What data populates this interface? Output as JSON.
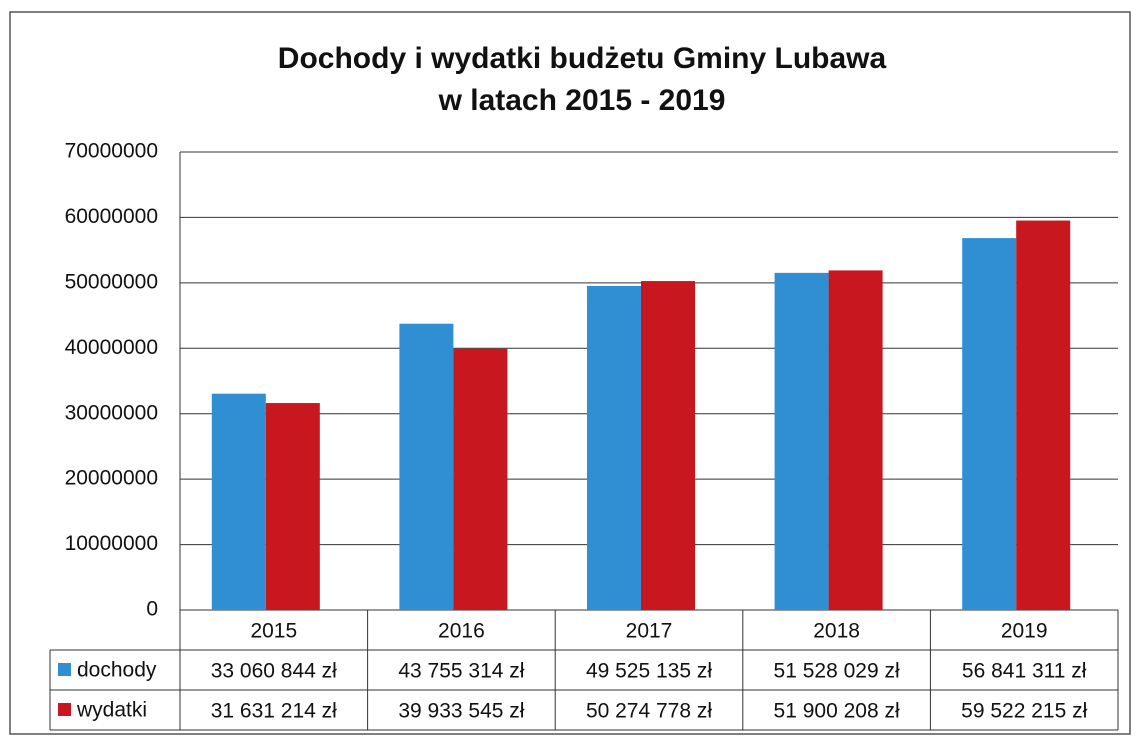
{
  "chart_data": {
    "type": "bar",
    "title": "Dochody i wydatki budżetu Gminy Lubawa",
    "subtitle": "w latach 2015 - 2019",
    "categories": [
      "2015",
      "2016",
      "2017",
      "2018",
      "2019"
    ],
    "series": [
      {
        "name": "dochody",
        "color": "#2f8fd2",
        "values": [
          33060844,
          43755314,
          49525135,
          51528029,
          56841311
        ],
        "value_labels": [
          "33 060 844 zł",
          "43 755 314 zł",
          "49 525 135 zł",
          "51 528 029 zł",
          "56 841 311 zł"
        ]
      },
      {
        "name": "wydatki",
        "color": "#c8171e",
        "values": [
          31631214,
          39933545,
          50274778,
          51900208,
          59522215
        ],
        "value_labels": [
          "31 631 214 zł",
          "39 933 545 zł",
          "50 274 778 zł",
          "51 900 208 zł",
          "59 522 215 zł"
        ]
      }
    ],
    "ylim": [
      0,
      70000000
    ],
    "yticks": [
      0,
      10000000,
      20000000,
      30000000,
      40000000,
      50000000,
      60000000,
      70000000
    ],
    "grid": true
  }
}
